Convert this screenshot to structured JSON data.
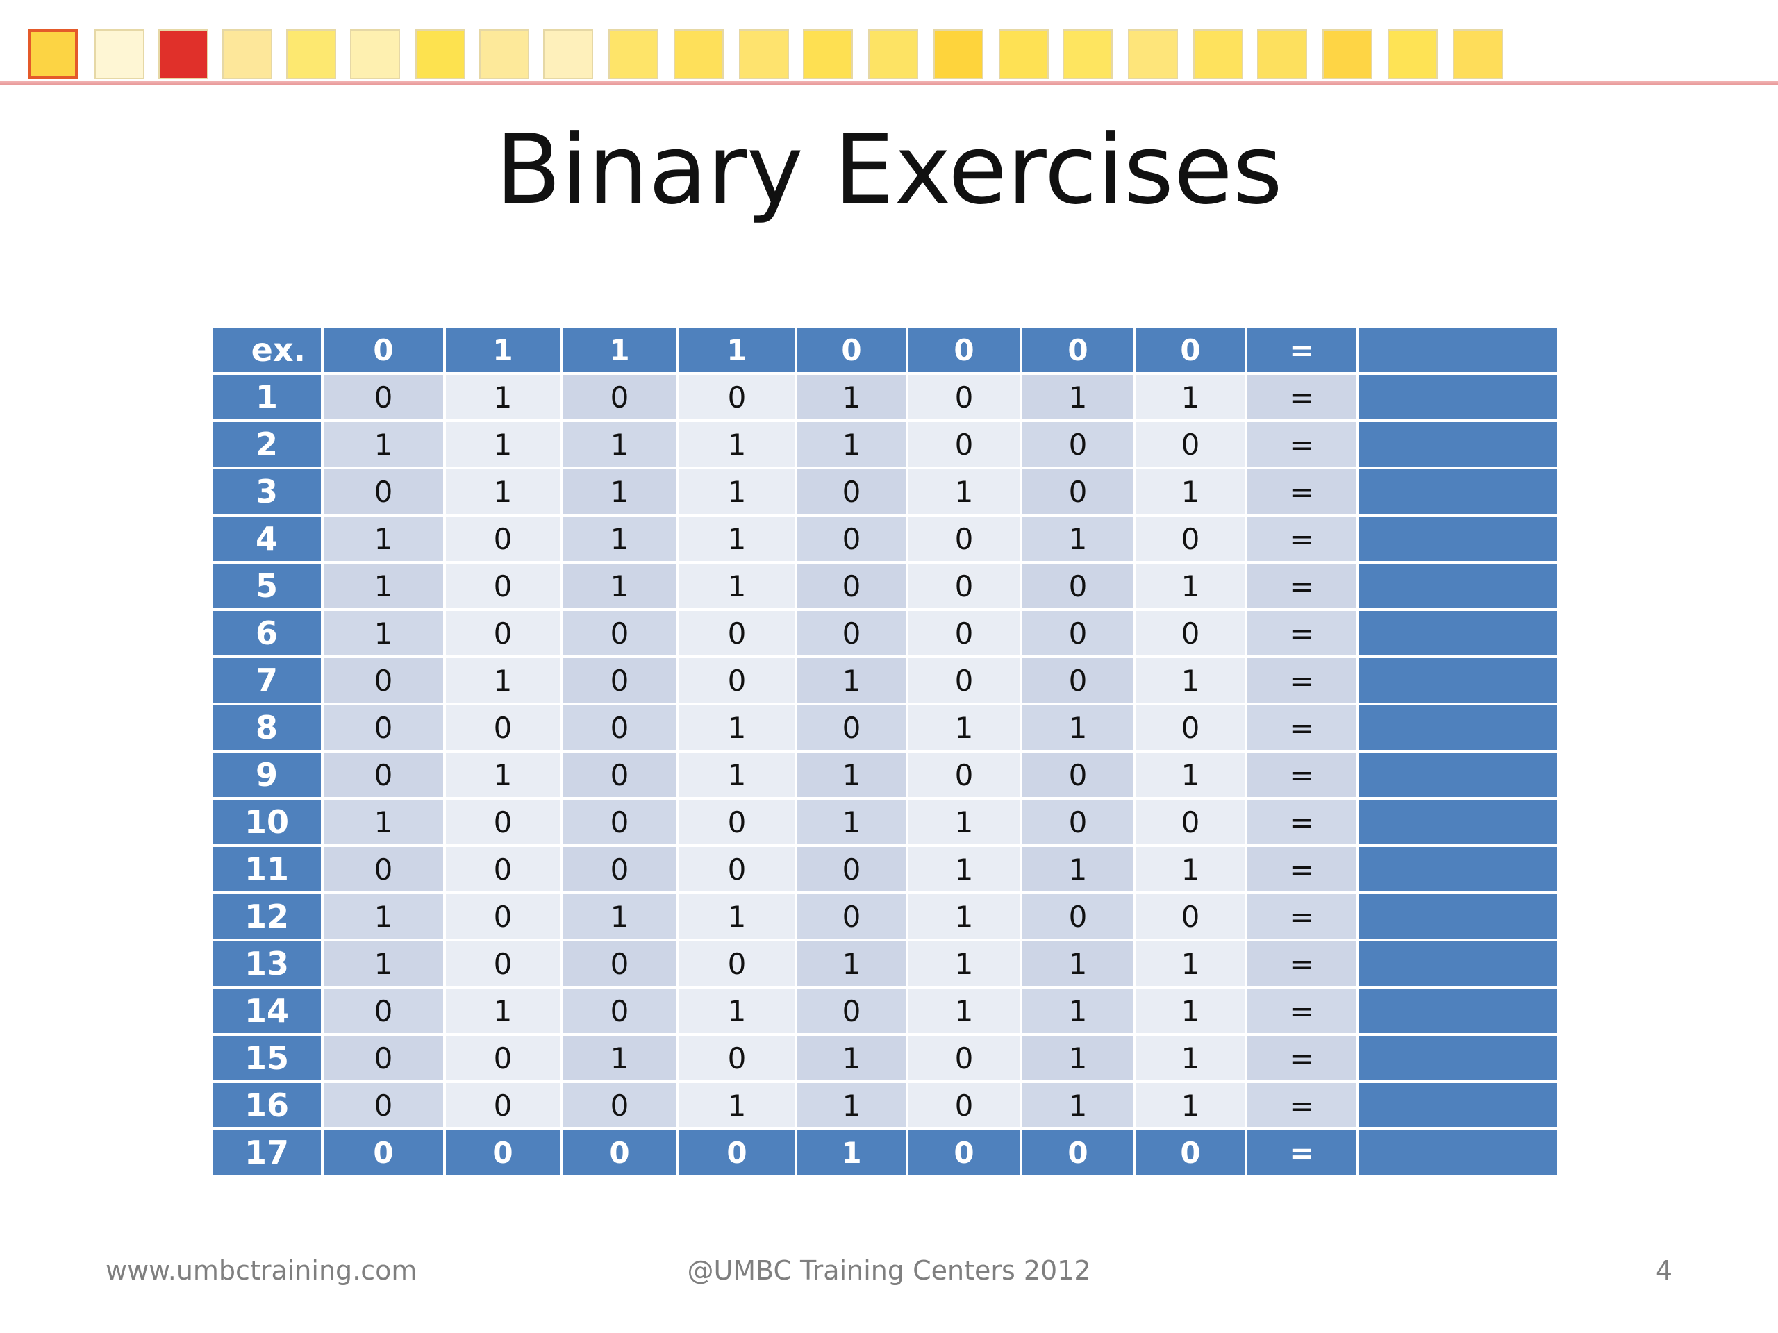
{
  "title": "Binary Exercises",
  "header_strip": {
    "colors": [
      "#fcd444",
      "#fef6d4",
      "#e0302a",
      "#fde79a",
      "#fde870",
      "#fef0b0",
      "#fde24f",
      "#fde99a",
      "#fef0bb",
      "#fee469",
      "#fee05a",
      "#fee36e",
      "#fee052",
      "#fde364",
      "#fed43c",
      "#fee154",
      "#fee560",
      "#fee57a",
      "#fee25d",
      "#fde05e",
      "#fed545",
      "#fee355",
      "#fedd5a"
    ],
    "selected_index": 0,
    "line_color": "#e89a9a"
  },
  "table": {
    "header": {
      "label": "ex.",
      "bits": [
        "0",
        "1",
        "1",
        "1",
        "0",
        "0",
        "0",
        "0"
      ],
      "equals": "="
    },
    "rows": [
      {
        "label": "1",
        "bits": [
          "0",
          "1",
          "0",
          "0",
          "1",
          "0",
          "1",
          "1"
        ],
        "equals": "="
      },
      {
        "label": "2",
        "bits": [
          "1",
          "1",
          "1",
          "1",
          "1",
          "0",
          "0",
          "0"
        ],
        "equals": "="
      },
      {
        "label": "3",
        "bits": [
          "0",
          "1",
          "1",
          "1",
          "0",
          "1",
          "0",
          "1"
        ],
        "equals": "="
      },
      {
        "label": "4",
        "bits": [
          "1",
          "0",
          "1",
          "1",
          "0",
          "0",
          "1",
          "0"
        ],
        "equals": "="
      },
      {
        "label": "5",
        "bits": [
          "1",
          "0",
          "1",
          "1",
          "0",
          "0",
          "0",
          "1"
        ],
        "equals": "="
      },
      {
        "label": "6",
        "bits": [
          "1",
          "0",
          "0",
          "0",
          "0",
          "0",
          "0",
          "0"
        ],
        "equals": "="
      },
      {
        "label": "7",
        "bits": [
          "0",
          "1",
          "0",
          "0",
          "1",
          "0",
          "0",
          "1"
        ],
        "equals": "="
      },
      {
        "label": "8",
        "bits": [
          "0",
          "0",
          "0",
          "1",
          "0",
          "1",
          "1",
          "0"
        ],
        "equals": "="
      },
      {
        "label": "9",
        "bits": [
          "0",
          "1",
          "0",
          "1",
          "1",
          "0",
          "0",
          "1"
        ],
        "equals": "="
      },
      {
        "label": "10",
        "bits": [
          "1",
          "0",
          "0",
          "0",
          "1",
          "1",
          "0",
          "0"
        ],
        "equals": "="
      },
      {
        "label": "11",
        "bits": [
          "0",
          "0",
          "0",
          "0",
          "0",
          "1",
          "1",
          "1"
        ],
        "equals": "="
      },
      {
        "label": "12",
        "bits": [
          "1",
          "0",
          "1",
          "1",
          "0",
          "1",
          "0",
          "0"
        ],
        "equals": "="
      },
      {
        "label": "13",
        "bits": [
          "1",
          "0",
          "0",
          "0",
          "1",
          "1",
          "1",
          "1"
        ],
        "equals": "="
      },
      {
        "label": "14",
        "bits": [
          "0",
          "1",
          "0",
          "1",
          "0",
          "1",
          "1",
          "1"
        ],
        "equals": "="
      },
      {
        "label": "15",
        "bits": [
          "0",
          "0",
          "1",
          "0",
          "1",
          "0",
          "1",
          "1"
        ],
        "equals": "="
      },
      {
        "label": "16",
        "bits": [
          "0",
          "0",
          "0",
          "1",
          "1",
          "0",
          "1",
          "1"
        ],
        "equals": "="
      }
    ],
    "footer": {
      "label": "17",
      "bits": [
        "0",
        "0",
        "0",
        "0",
        "1",
        "0",
        "0",
        "0"
      ],
      "equals": "="
    },
    "colors": {
      "header": "#4f81bd",
      "band_dark": "#d0d8e8",
      "band_light": "#e9edf4"
    }
  },
  "footer": {
    "left": "www.umbctraining.com",
    "center": "@UMBC Training Centers 2012",
    "right": "4"
  }
}
